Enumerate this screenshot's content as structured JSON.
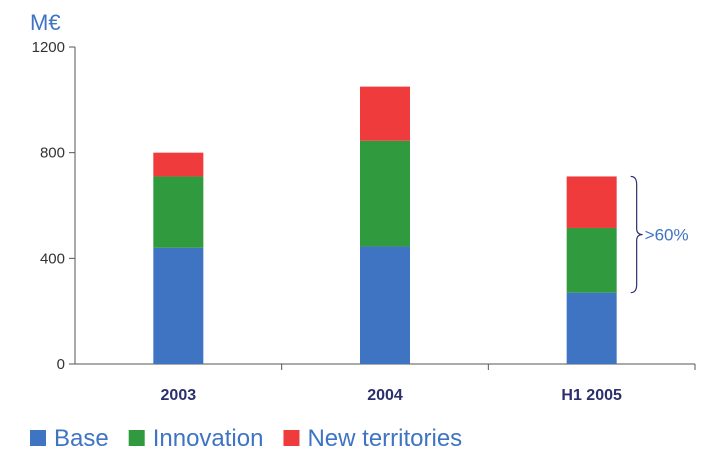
{
  "chart_data": {
    "type": "bar",
    "stacked": true,
    "unit_label": "M€",
    "title": "",
    "xlabel": "",
    "ylabel": "",
    "categories": [
      "2003",
      "2004",
      "H1 2005"
    ],
    "series": [
      {
        "name": "Base",
        "color": "#3f74c3",
        "values": [
          440,
          445,
          270
        ]
      },
      {
        "name": "Innovation",
        "color": "#2f9a3e",
        "values": [
          270,
          400,
          245
        ]
      },
      {
        "name": "New territories",
        "color": "#ef3b3b",
        "values": [
          90,
          205,
          195
        ]
      }
    ],
    "ylim": [
      0,
      1200
    ],
    "yticks": [
      0,
      400,
      800,
      1200
    ],
    "grid": false,
    "legend_position": "bottom",
    "annotation": {
      "text": ">60%",
      "applies_to": "H1 2005",
      "brace_from_value": 270,
      "brace_to_value": 710
    }
  }
}
